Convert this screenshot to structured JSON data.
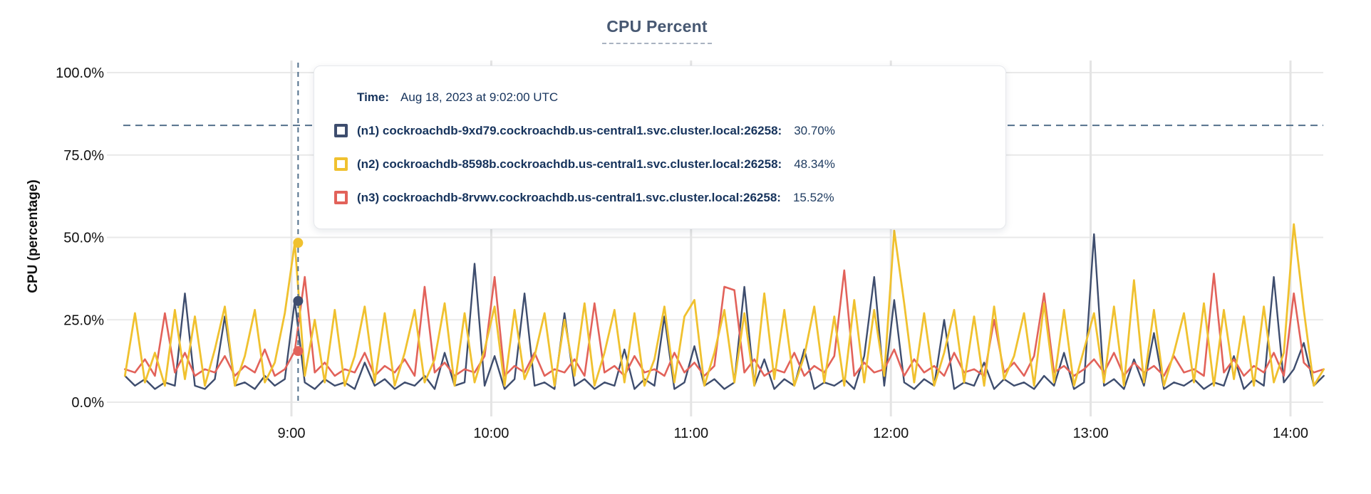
{
  "title": "CPU Percent",
  "tooltip": {
    "time_label": "Time:",
    "time_value": "Aug 18, 2023 at 9:02:00 UTC",
    "rows": [
      {
        "label": "(n1) cockroachdb-9xd79.cockroachdb.us-central1.svc.cluster.local:26258:",
        "value": "30.70%",
        "color": "#3e4d6e"
      },
      {
        "label": "(n2) cockroachdb-8598b.cockroachdb.us-central1.svc.cluster.local:26258:",
        "value": "48.34%",
        "color": "#f0c12f"
      },
      {
        "label": "(n3) cockroachdb-8rvwv.cockroachdb.us-central1.svc.cluster.local:26258:",
        "value": "15.52%",
        "color": "#e2625a"
      }
    ]
  },
  "chart_data": {
    "type": "line",
    "title": "CPU Percent",
    "ylabel": "CPU (percentage)",
    "xlabel": "",
    "grid": true,
    "ylim": [
      0,
      100
    ],
    "y_ticks": [
      {
        "label": "100.0%",
        "value": 100
      },
      {
        "label": "75.0%",
        "value": 75
      },
      {
        "label": "50.0%",
        "value": 50
      },
      {
        "label": "25.0%",
        "value": 25
      },
      {
        "label": "0.0%",
        "value": 0
      }
    ],
    "x_ticks": [
      {
        "label": "9:00",
        "minute": 540
      },
      {
        "label": "10:00",
        "minute": 600
      },
      {
        "label": "11:00",
        "minute": 660
      },
      {
        "label": "12:00",
        "minute": 720
      },
      {
        "label": "13:00",
        "minute": 780
      },
      {
        "label": "14:00",
        "minute": 840
      }
    ],
    "x_range_minutes": [
      490,
      850
    ],
    "sample_step_minutes": 3,
    "threshold": {
      "value_percent": 84,
      "style": "dashed",
      "color": "#53708c"
    },
    "hover": {
      "time_label": "9:02",
      "time_minute": 542,
      "values": {
        "n1": 30.7,
        "n2": 48.34,
        "n3": 15.52
      },
      "line_color": "#53708c"
    },
    "colors": {
      "grid_h": "#e9e9e9",
      "grid_v": "#e4e4e4",
      "tick_text": "#111111"
    },
    "series": [
      {
        "id": "n1",
        "name": "(n1) cockroachdb-9xd79.cockroachdb.us-central1.svc.cluster.local:26258",
        "color": "#3e4d6e",
        "width": 2.4,
        "values": [
          8,
          5,
          7,
          4,
          6,
          5,
          33,
          5,
          4,
          7,
          26,
          5,
          6,
          4,
          8,
          5,
          7,
          30.7,
          6,
          4,
          7,
          5,
          6,
          4,
          12,
          5,
          7,
          4,
          6,
          5,
          8,
          4,
          15,
          5,
          6,
          42,
          5,
          14,
          4,
          7,
          33,
          5,
          6,
          4,
          27,
          5,
          7,
          4,
          6,
          5,
          16,
          4,
          7,
          5,
          26,
          4,
          6,
          17,
          5,
          7,
          4,
          6,
          35,
          5,
          13,
          4,
          7,
          5,
          16,
          4,
          6,
          5,
          7,
          4,
          14,
          38,
          5,
          31,
          6,
          4,
          7,
          5,
          25,
          4,
          6,
          5,
          12,
          4,
          7,
          5,
          6,
          4,
          8,
          5,
          15,
          4,
          6,
          51,
          5,
          7,
          4,
          13,
          5,
          21,
          4,
          6,
          5,
          7,
          4,
          6,
          5,
          14,
          4,
          7,
          5,
          38,
          6,
          10,
          18,
          5,
          8
        ]
      },
      {
        "id": "n2",
        "name": "(n2) cockroachdb-8598b.cockroachdb.us-central1.svc.cluster.local:26258",
        "color": "#f0c12f",
        "width": 2.8,
        "values": [
          8,
          27,
          6,
          15,
          5,
          28,
          7,
          26,
          5,
          16,
          29,
          5,
          14,
          28,
          6,
          12,
          27,
          48.34,
          8,
          25,
          6,
          28,
          5,
          14,
          29,
          6,
          27,
          5,
          15,
          28,
          6,
          13,
          30,
          5,
          27,
          6,
          16,
          29,
          5,
          28,
          7,
          14,
          27,
          5,
          25,
          8,
          30,
          5,
          15,
          28,
          6,
          27,
          5,
          13,
          29,
          6,
          26,
          31,
          5,
          15,
          28,
          6,
          27,
          5,
          33,
          7,
          28,
          5,
          14,
          29,
          6,
          26,
          5,
          31,
          6,
          28,
          8,
          52,
          30,
          6,
          27,
          5,
          15,
          28,
          6,
          26,
          5,
          29,
          7,
          14,
          27,
          5,
          30,
          6,
          28,
          5,
          16,
          27,
          6,
          29,
          5,
          37,
          6,
          28,
          5,
          15,
          27,
          6,
          30,
          5,
          28,
          7,
          26,
          5,
          29,
          6,
          15,
          54,
          28,
          5,
          10
        ]
      },
      {
        "id": "n3",
        "name": "(n3) cockroachdb-8rvwv.cockroachdb.us-central1.svc.cluster.local:26258",
        "color": "#e2625a",
        "width": 2.6,
        "values": [
          10,
          9,
          13,
          8,
          27,
          9,
          15,
          8,
          10,
          9,
          14,
          8,
          11,
          9,
          16,
          8,
          10,
          15.52,
          38,
          9,
          12,
          8,
          10,
          9,
          15,
          8,
          11,
          9,
          13,
          8,
          35,
          9,
          12,
          8,
          10,
          9,
          14,
          38,
          8,
          11,
          9,
          15,
          8,
          10,
          9,
          13,
          8,
          30,
          9,
          11,
          8,
          14,
          9,
          10,
          8,
          15,
          9,
          12,
          8,
          11,
          35,
          34,
          9,
          13,
          8,
          10,
          9,
          15,
          8,
          11,
          9,
          14,
          40,
          8,
          12,
          9,
          10,
          16,
          8,
          13,
          9,
          11,
          8,
          15,
          9,
          10,
          8,
          25,
          9,
          12,
          8,
          14,
          33,
          9,
          11,
          8,
          10,
          13,
          9,
          15,
          8,
          12,
          9,
          11,
          8,
          14,
          9,
          10,
          8,
          39,
          9,
          13,
          8,
          11,
          9,
          15,
          8,
          33,
          12,
          9,
          10
        ]
      }
    ],
    "draw_order": [
      0,
      2,
      1
    ],
    "legend_position": "tooltip"
  }
}
